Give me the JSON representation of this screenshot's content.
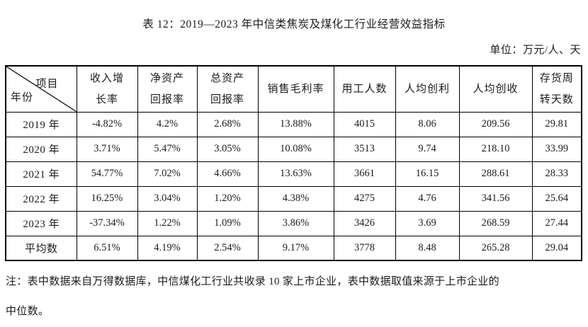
{
  "page": {
    "title": "表 12：2019—2023 年中信类焦炭及煤化工行业经营效益指标",
    "unit_label": "单位：万元/人、天"
  },
  "table": {
    "corner": {
      "top_right": "项目",
      "bottom_left": "年份"
    },
    "columns": [
      {
        "id": "income-growth-rate",
        "lines": [
          "收入增",
          "长率"
        ]
      },
      {
        "id": "net-asset-return-rate",
        "lines": [
          "净资产",
          "回报率"
        ]
      },
      {
        "id": "total-asset-return-rate",
        "lines": [
          "总资产",
          "回报率"
        ]
      },
      {
        "id": "gross-sales-margin",
        "lines": [
          "销售毛利率"
        ]
      },
      {
        "id": "employee-count",
        "lines": [
          "用工人数"
        ]
      },
      {
        "id": "profit-per-capita",
        "lines": [
          "人均创利"
        ]
      },
      {
        "id": "revenue-per-capita",
        "lines": [
          "人均创收"
        ]
      },
      {
        "id": "inventory-turnover-days",
        "lines": [
          "存货周",
          "转天数"
        ]
      }
    ],
    "rows": [
      {
        "label": "2019 年",
        "bold": false,
        "values": [
          "-4.82%",
          "4.2%",
          "2.68%",
          "13.88%",
          "4015",
          "8.06",
          "209.56",
          "29.81"
        ]
      },
      {
        "label": "2020 年",
        "bold": false,
        "values": [
          "3.71%",
          "5.47%",
          "3.05%",
          "10.08%",
          "3513",
          "9.74",
          "218.10",
          "33.99"
        ]
      },
      {
        "label": "2021 年",
        "bold": false,
        "values": [
          "54.77%",
          "7.02%",
          "4.66%",
          "13.63%",
          "3661",
          "16.15",
          "288.61",
          "28.33"
        ]
      },
      {
        "label": "2022 年",
        "bold": false,
        "values": [
          "16.25%",
          "3.04%",
          "1.20%",
          "4.38%",
          "4275",
          "4.76",
          "341.56",
          "25.64"
        ]
      },
      {
        "label": "2023 年",
        "bold": false,
        "values": [
          "-37.34%",
          "1.22%",
          "1.09%",
          "3.86%",
          "3426",
          "3.69",
          "268.59",
          "27.44"
        ]
      },
      {
        "label": "平均数",
        "bold": true,
        "values": [
          "6.51%",
          "4.19%",
          "2.54%",
          "9.17%",
          "3778",
          "8.48",
          "265.28",
          "29.04"
        ]
      }
    ]
  },
  "note": {
    "line1": "注：表中数据来自万得数据库，中信煤化工行业共收录 10 家上市企业，表中数据取值来源于上市企业的",
    "line2": "中位数。"
  },
  "colors": {
    "text": "#1c1c1c",
    "border": "#000000",
    "background": "#ffffff"
  }
}
